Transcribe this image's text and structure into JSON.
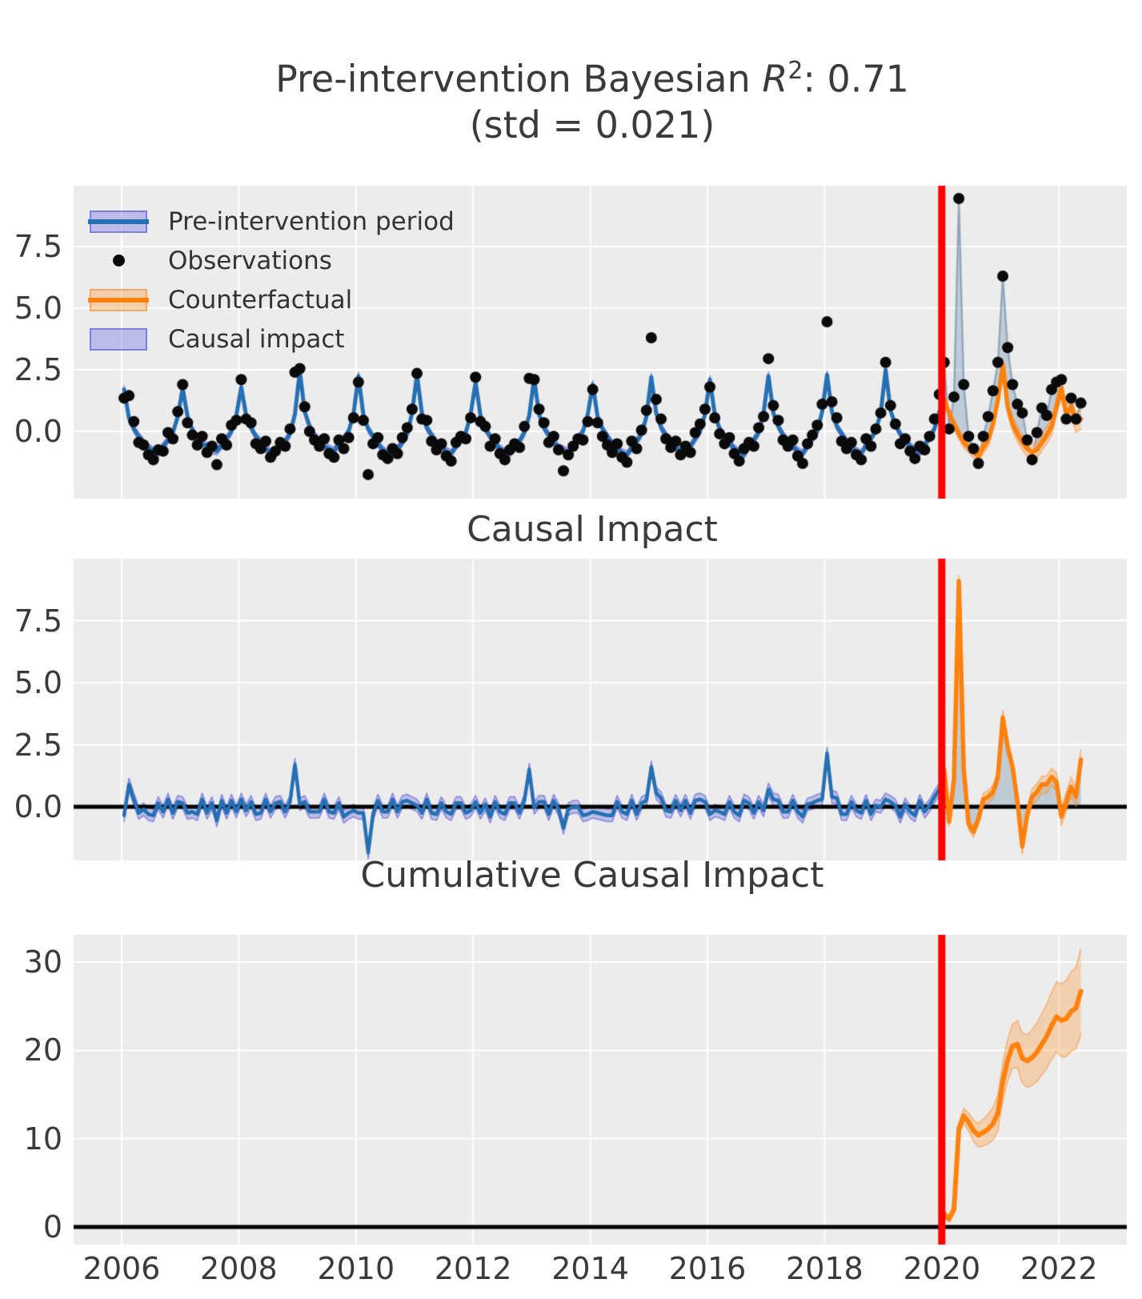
{
  "title": {
    "prefix": "Pre-intervention Bayesian ",
    "math": "R",
    "exp": "2",
    "suffix": ": 0.71",
    "line2": "(std = 0.021)"
  },
  "subplot_titles": {
    "impact": "Causal Impact",
    "cumulative": "Cumulative Causal Impact"
  },
  "legend": {
    "items": [
      {
        "label": "Pre-intervention period",
        "swatch": "band-line-blue"
      },
      {
        "label": "Observations",
        "swatch": "dot"
      },
      {
        "label": "Counterfactual",
        "swatch": "band-line-orange"
      },
      {
        "label": "Causal impact",
        "swatch": "patch"
      }
    ]
  },
  "axes": {
    "x_tick_labels": [
      "2006",
      "2008",
      "2010",
      "2012",
      "2014",
      "2016",
      "2018",
      "2020",
      "2022"
    ],
    "x_tick_values": [
      2006,
      2008,
      2010,
      2012,
      2014,
      2016,
      2018,
      2020,
      2022
    ],
    "panel1_y": {
      "labels": [
        "0.0",
        "2.5",
        "5.0",
        "7.5"
      ],
      "values": [
        0,
        2.5,
        5,
        7.5
      ]
    },
    "panel2_y": {
      "labels": [
        "0.0",
        "2.5",
        "5.0",
        "7.5"
      ],
      "values": [
        0,
        2.5,
        5,
        7.5
      ]
    },
    "panel3_y": {
      "labels": [
        "0",
        "10",
        "20",
        "30"
      ],
      "values": [
        0,
        10,
        20,
        30
      ]
    }
  },
  "colors": {
    "bg": "#ececec",
    "grid": "#ffffff",
    "text": "#3a3a3a",
    "blue_line": "#2470b3",
    "purple_band": "rgba(122,122,228,0.40)",
    "purple_band_edge": "rgba(106,106,218,0.75)",
    "orange_line": "#fd810d",
    "orange_band": "rgba(253,163,77,0.38)",
    "orange_band_edge": "rgba(250,140,45,0.55)",
    "impact_fill": "rgba(110,145,175,0.35)",
    "obs_post_line": "rgba(95,125,160,0.55)",
    "obs_dot": "#0a0a0a",
    "red_line": "#ff0000",
    "zero_line": "#000000"
  },
  "chart_data": {
    "type": "line",
    "x_start": 2006.0,
    "x_step_months": 1,
    "intervention_x": 2020.0,
    "x_range": [
      2005.18,
      2023.16
    ],
    "panels": [
      {
        "name": "fit",
        "ylim": [
          -2.73,
          9.97
        ],
        "yticks": [
          0,
          2.5,
          5,
          7.5
        ]
      },
      {
        "name": "impact",
        "ylim": [
          -2.16,
          10.0
        ],
        "yticks": [
          0,
          2.5,
          5,
          7.5
        ]
      },
      {
        "name": "cumulative",
        "ylim": [
          -2.0,
          33.1
        ],
        "yticks": [
          0,
          10,
          20,
          30
        ]
      }
    ],
    "observed_pre": [
      1.35,
      1.45,
      0.4,
      -0.45,
      -0.55,
      -0.95,
      -1.15,
      -0.75,
      -0.8,
      -0.05,
      -0.3,
      0.8,
      1.9,
      0.35,
      -0.15,
      -0.55,
      -0.2,
      -0.85,
      -0.6,
      -1.35,
      -0.3,
      -0.55,
      0.25,
      0.45,
      2.1,
      0.5,
      0.35,
      -0.5,
      -0.7,
      -0.4,
      -1.05,
      -0.8,
      -0.45,
      -0.6,
      0.1,
      2.4,
      2.55,
      1.0,
      0.0,
      -0.35,
      -0.6,
      -0.3,
      -0.9,
      -1.05,
      -0.35,
      -0.7,
      -0.25,
      0.55,
      2.0,
      0.45,
      -1.75,
      -0.5,
      -0.25,
      -0.95,
      -1.1,
      -0.7,
      -0.9,
      -0.25,
      0.15,
      0.9,
      2.35,
      0.5,
      0.45,
      -0.4,
      -0.75,
      -0.5,
      -1.0,
      -1.2,
      -0.45,
      -0.2,
      -0.3,
      0.55,
      2.2,
      0.4,
      0.2,
      -0.6,
      -0.3,
      -0.9,
      -1.15,
      -0.75,
      -0.5,
      -0.65,
      0.2,
      2.15,
      2.1,
      0.9,
      0.35,
      -0.45,
      -0.2,
      -0.75,
      -1.6,
      -0.95,
      -0.6,
      -0.3,
      -0.35,
      0.4,
      1.7,
      0.35,
      -0.2,
      -0.55,
      -0.85,
      -0.5,
      -1.05,
      -1.25,
      -0.4,
      -0.7,
      0.05,
      0.85,
      3.8,
      1.3,
      0.5,
      -0.3,
      -0.65,
      -0.4,
      -0.95,
      -0.6,
      -0.85,
      -0.05,
      0.3,
      0.9,
      1.8,
      0.55,
      -0.1,
      -0.5,
      -0.25,
      -0.9,
      -1.2,
      -0.7,
      -0.45,
      -0.6,
      0.15,
      0.6,
      2.95,
      1.05,
      0.45,
      -0.35,
      -0.6,
      -0.35,
      -1.0,
      -1.3,
      -0.5,
      -0.15,
      0.25,
      1.1,
      4.45,
      1.2,
      0.55,
      -0.4,
      -0.7,
      -0.45,
      -0.95,
      -1.15,
      -0.3,
      -0.6,
      0.1,
      0.75,
      2.8,
      1.05,
      0.3,
      -0.5,
      -0.3,
      -0.8,
      -1.1,
      -0.6,
      -0.75,
      -0.2,
      0.5,
      1.5
    ],
    "predicted_pre": [
      1.7,
      0.55,
      0.1,
      -0.2,
      -0.45,
      -0.65,
      -0.8,
      -0.9,
      -0.6,
      -0.35,
      -0.05,
      0.6,
      1.75,
      0.6,
      0.05,
      -0.25,
      -0.5,
      -0.6,
      -0.75,
      -0.8,
      -0.55,
      -0.3,
      0.0,
      0.65,
      1.8,
      0.65,
      0.15,
      -0.2,
      -0.45,
      -0.7,
      -0.85,
      -0.95,
      -0.65,
      -0.4,
      -0.1,
      0.7,
      2.45,
      0.8,
      0.2,
      -0.15,
      -0.4,
      -0.6,
      -0.7,
      -0.8,
      -0.5,
      -0.3,
      0.0,
      0.7,
      2.25,
      0.7,
      0.1,
      -0.2,
      -0.5,
      -0.75,
      -0.9,
      -1.0,
      -0.7,
      -0.45,
      -0.1,
      0.75,
      2.3,
      0.75,
      0.15,
      -0.15,
      -0.45,
      -0.65,
      -0.8,
      -0.9,
      -0.6,
      -0.35,
      -0.05,
      0.7,
      2.0,
      0.65,
      0.1,
      -0.2,
      -0.5,
      -0.7,
      -0.85,
      -0.9,
      -0.65,
      -0.4,
      -0.05,
      0.65,
      2.15,
      0.7,
      0.15,
      -0.15,
      -0.45,
      -0.65,
      -0.75,
      -0.85,
      -0.6,
      -0.3,
      0.0,
      0.7,
      1.9,
      0.6,
      0.1,
      -0.2,
      -0.5,
      -0.7,
      -0.85,
      -0.95,
      -0.65,
      -0.4,
      -0.1,
      0.6,
      2.2,
      0.75,
      0.15,
      -0.15,
      -0.45,
      -0.65,
      -0.8,
      -0.85,
      -0.6,
      -0.3,
      0.0,
      0.7,
      2.1,
      0.7,
      0.1,
      -0.2,
      -0.45,
      -0.7,
      -0.85,
      -0.95,
      -0.6,
      -0.35,
      -0.05,
      0.75,
      2.25,
      0.75,
      0.2,
      -0.15,
      -0.4,
      -0.6,
      -0.8,
      -0.9,
      -0.6,
      -0.3,
      0.0,
      0.8,
      2.3,
      0.8,
      0.2,
      -0.1,
      -0.4,
      -0.65,
      -0.8,
      -0.9,
      -0.55,
      -0.3,
      0.05,
      0.75,
      2.5,
      0.85,
      0.25,
      -0.1,
      -0.4,
      -0.6,
      -0.75,
      -0.85,
      -0.55,
      -0.25,
      0.1,
      0.8
    ],
    "observed_post": [
      2.8,
      0.1,
      1.4,
      9.45,
      1.9,
      -0.2,
      -0.7,
      -1.3,
      -0.2,
      0.6,
      1.65,
      2.8,
      6.3,
      3.4,
      1.9,
      1.1,
      0.75,
      -0.35,
      -1.15,
      -0.05,
      0.95,
      0.65,
      1.7,
      2.0,
      2.1,
      0.5,
      1.35,
      0.5,
      1.15
    ],
    "counterfactual_post": [
      1.3,
      0.75,
      0.3,
      -0.1,
      -0.45,
      -0.65,
      -0.85,
      -1.0,
      -0.65,
      -0.35,
      0.3,
      1.3,
      2.7,
      1.0,
      0.3,
      -0.1,
      -0.45,
      -0.7,
      -0.85,
      -0.75,
      -0.45,
      -0.15,
      0.2,
      1.0,
      1.75,
      0.7,
      1.0,
      0.35,
      0.5
    ],
    "impact_post": [
      1.5,
      -0.6,
      1.1,
      9.1,
      1.5,
      -0.7,
      -1.0,
      -0.5,
      0.3,
      0.4,
      0.6,
      1.2,
      3.6,
      2.4,
      1.6,
      0.2,
      -1.6,
      -0.3,
      0.4,
      0.6,
      0.9,
      0.9,
      1.2,
      1.0,
      -0.4,
      0.2,
      0.8,
      0.4,
      1.9
    ],
    "cumulative_post": [
      1.5,
      0.9,
      2.0,
      11.1,
      12.6,
      11.9,
      10.9,
      10.4,
      10.7,
      11.1,
      11.7,
      12.9,
      16.5,
      18.9,
      20.5,
      20.7,
      19.1,
      18.8,
      19.2,
      19.8,
      20.7,
      21.6,
      22.8,
      23.8,
      23.4,
      23.6,
      24.4,
      24.8,
      26.7
    ],
    "bands": {
      "pre_halfwidth": 0.15,
      "pre_impact_halfwidth": 0.25,
      "post_halfwidth_start": 0.18,
      "post_halfwidth_end": 0.4,
      "cum_halfwidth_start": 0.2,
      "cum_halfwidth_end": 4.8
    }
  }
}
